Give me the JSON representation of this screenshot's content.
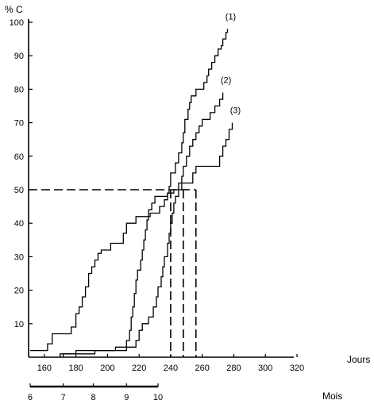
{
  "chart_data": {
    "type": "line",
    "step": true,
    "grid": false,
    "ylabel": "% C",
    "xlabel": "Jours",
    "secondary_xlabel": "Mois",
    "xlim": [
      150,
      320
    ],
    "ylim": [
      0,
      100
    ],
    "x_ticks": [
      160,
      180,
      200,
      220,
      240,
      260,
      280,
      300,
      320
    ],
    "y_ticks": [
      10,
      20,
      30,
      40,
      50,
      60,
      70,
      80,
      90,
      100
    ],
    "secondary_axis": {
      "ticks": [
        {
          "label": "6",
          "x": 151
        },
        {
          "label": "7",
          "x": 172
        },
        {
          "label": "8",
          "x": 191
        },
        {
          "label": "9",
          "x": 212
        },
        {
          "label": "10",
          "x": 232
        }
      ]
    },
    "series": [
      {
        "name": "(1)",
        "points": [
          [
            151,
            2
          ],
          [
            162,
            2
          ],
          [
            162,
            4
          ],
          [
            165,
            4
          ],
          [
            165,
            7
          ],
          [
            177,
            7
          ],
          [
            177,
            9
          ],
          [
            180,
            9
          ],
          [
            180,
            13
          ],
          [
            182,
            13
          ],
          [
            182,
            15
          ],
          [
            184,
            15
          ],
          [
            184,
            18
          ],
          [
            186,
            18
          ],
          [
            186,
            21
          ],
          [
            188,
            21
          ],
          [
            188,
            25
          ],
          [
            190,
            25
          ],
          [
            190,
            27
          ],
          [
            192,
            27
          ],
          [
            192,
            29
          ],
          [
            194,
            29
          ],
          [
            194,
            31
          ],
          [
            196,
            31
          ],
          [
            196,
            32
          ],
          [
            202,
            32
          ],
          [
            202,
            34
          ],
          [
            210,
            34
          ],
          [
            210,
            37
          ],
          [
            212,
            37
          ],
          [
            212,
            40
          ],
          [
            218,
            40
          ],
          [
            218,
            42
          ],
          [
            227,
            42
          ],
          [
            227,
            43
          ],
          [
            233,
            43
          ],
          [
            233,
            45
          ],
          [
            236,
            45
          ],
          [
            236,
            47
          ],
          [
            238,
            47
          ],
          [
            238,
            49
          ],
          [
            239,
            49
          ],
          [
            239,
            51
          ],
          [
            240,
            51
          ],
          [
            240,
            55
          ],
          [
            243,
            55
          ],
          [
            243,
            58
          ],
          [
            245,
            58
          ],
          [
            245,
            61
          ],
          [
            247,
            61
          ],
          [
            247,
            64
          ],
          [
            248,
            64
          ],
          [
            248,
            67
          ],
          [
            249,
            67
          ],
          [
            249,
            71
          ],
          [
            251,
            71
          ],
          [
            251,
            74
          ],
          [
            252,
            74
          ],
          [
            252,
            76
          ],
          [
            253,
            76
          ],
          [
            253,
            78
          ],
          [
            256,
            78
          ],
          [
            256,
            80
          ],
          [
            261,
            80
          ],
          [
            261,
            82
          ],
          [
            263,
            82
          ],
          [
            263,
            84
          ],
          [
            264,
            84
          ],
          [
            264,
            86
          ],
          [
            266,
            86
          ],
          [
            266,
            88
          ],
          [
            268,
            88
          ],
          [
            268,
            90
          ],
          [
            270,
            90
          ],
          [
            270,
            92
          ],
          [
            272,
            92
          ],
          [
            272,
            93
          ],
          [
            273,
            93
          ],
          [
            273,
            95
          ],
          [
            275,
            95
          ],
          [
            275,
            97
          ],
          [
            276,
            97
          ],
          [
            276,
            98
          ]
        ]
      },
      {
        "name": "(2)",
        "points": [
          [
            170,
            0
          ],
          [
            170,
            1
          ],
          [
            180,
            1
          ],
          [
            180,
            2
          ],
          [
            205,
            2
          ],
          [
            205,
            3
          ],
          [
            212,
            3
          ],
          [
            212,
            5
          ],
          [
            214,
            5
          ],
          [
            214,
            8
          ],
          [
            215,
            8
          ],
          [
            215,
            12
          ],
          [
            216,
            12
          ],
          [
            216,
            15
          ],
          [
            217,
            15
          ],
          [
            217,
            19
          ],
          [
            218,
            19
          ],
          [
            218,
            23
          ],
          [
            219,
            23
          ],
          [
            219,
            26
          ],
          [
            221,
            26
          ],
          [
            221,
            29
          ],
          [
            222,
            29
          ],
          [
            222,
            32
          ],
          [
            223,
            32
          ],
          [
            223,
            35
          ],
          [
            224,
            35
          ],
          [
            224,
            38
          ],
          [
            225,
            38
          ],
          [
            225,
            41
          ],
          [
            226,
            41
          ],
          [
            226,
            44
          ],
          [
            228,
            44
          ],
          [
            228,
            46
          ],
          [
            230,
            46
          ],
          [
            230,
            48
          ],
          [
            238,
            48
          ],
          [
            238,
            49
          ],
          [
            242,
            49
          ],
          [
            242,
            50
          ],
          [
            245,
            50
          ],
          [
            245,
            52
          ],
          [
            247,
            52
          ],
          [
            247,
            54
          ],
          [
            248,
            54
          ],
          [
            248,
            57
          ],
          [
            250,
            57
          ],
          [
            250,
            60
          ],
          [
            252,
            60
          ],
          [
            252,
            63
          ],
          [
            254,
            63
          ],
          [
            254,
            65
          ],
          [
            256,
            65
          ],
          [
            256,
            67
          ],
          [
            258,
            67
          ],
          [
            258,
            69
          ],
          [
            260,
            69
          ],
          [
            260,
            71
          ],
          [
            265,
            71
          ],
          [
            265,
            73
          ],
          [
            268,
            73
          ],
          [
            268,
            75
          ],
          [
            271,
            75
          ],
          [
            271,
            77
          ],
          [
            273,
            77
          ],
          [
            273,
            79
          ]
        ]
      },
      {
        "name": "(3)",
        "points": [
          [
            172,
            0
          ],
          [
            172,
            1
          ],
          [
            192,
            1
          ],
          [
            192,
            2
          ],
          [
            212,
            2
          ],
          [
            212,
            3
          ],
          [
            218,
            3
          ],
          [
            218,
            5
          ],
          [
            220,
            5
          ],
          [
            220,
            8
          ],
          [
            222,
            8
          ],
          [
            222,
            10
          ],
          [
            226,
            10
          ],
          [
            226,
            12
          ],
          [
            229,
            12
          ],
          [
            229,
            15
          ],
          [
            231,
            15
          ],
          [
            231,
            18
          ],
          [
            232,
            18
          ],
          [
            232,
            21
          ],
          [
            234,
            21
          ],
          [
            234,
            24
          ],
          [
            235,
            24
          ],
          [
            235,
            27
          ],
          [
            236,
            27
          ],
          [
            236,
            30
          ],
          [
            238,
            30
          ],
          [
            238,
            34
          ],
          [
            239,
            34
          ],
          [
            239,
            37
          ],
          [
            240,
            37
          ],
          [
            240,
            40
          ],
          [
            241,
            40
          ],
          [
            241,
            43
          ],
          [
            242,
            43
          ],
          [
            242,
            46
          ],
          [
            243,
            46
          ],
          [
            243,
            48
          ],
          [
            245,
            48
          ],
          [
            245,
            50
          ],
          [
            247,
            50
          ],
          [
            247,
            52
          ],
          [
            254,
            52
          ],
          [
            254,
            55
          ],
          [
            256,
            55
          ],
          [
            256,
            57
          ],
          [
            271,
            57
          ],
          [
            271,
            60
          ],
          [
            273,
            60
          ],
          [
            273,
            63
          ],
          [
            275,
            63
          ],
          [
            275,
            65
          ],
          [
            277,
            65
          ],
          [
            277,
            68
          ],
          [
            279,
            68
          ],
          [
            279,
            70
          ]
        ]
      }
    ],
    "reference_lines": {
      "horizontal": {
        "y": 50,
        "x_from": 150,
        "x_to": 256
      },
      "verticals": [
        {
          "x": 240,
          "y_to": 50
        },
        {
          "x": 248,
          "y_to": 50
        },
        {
          "x": 256,
          "y_to": 50
        }
      ]
    }
  }
}
